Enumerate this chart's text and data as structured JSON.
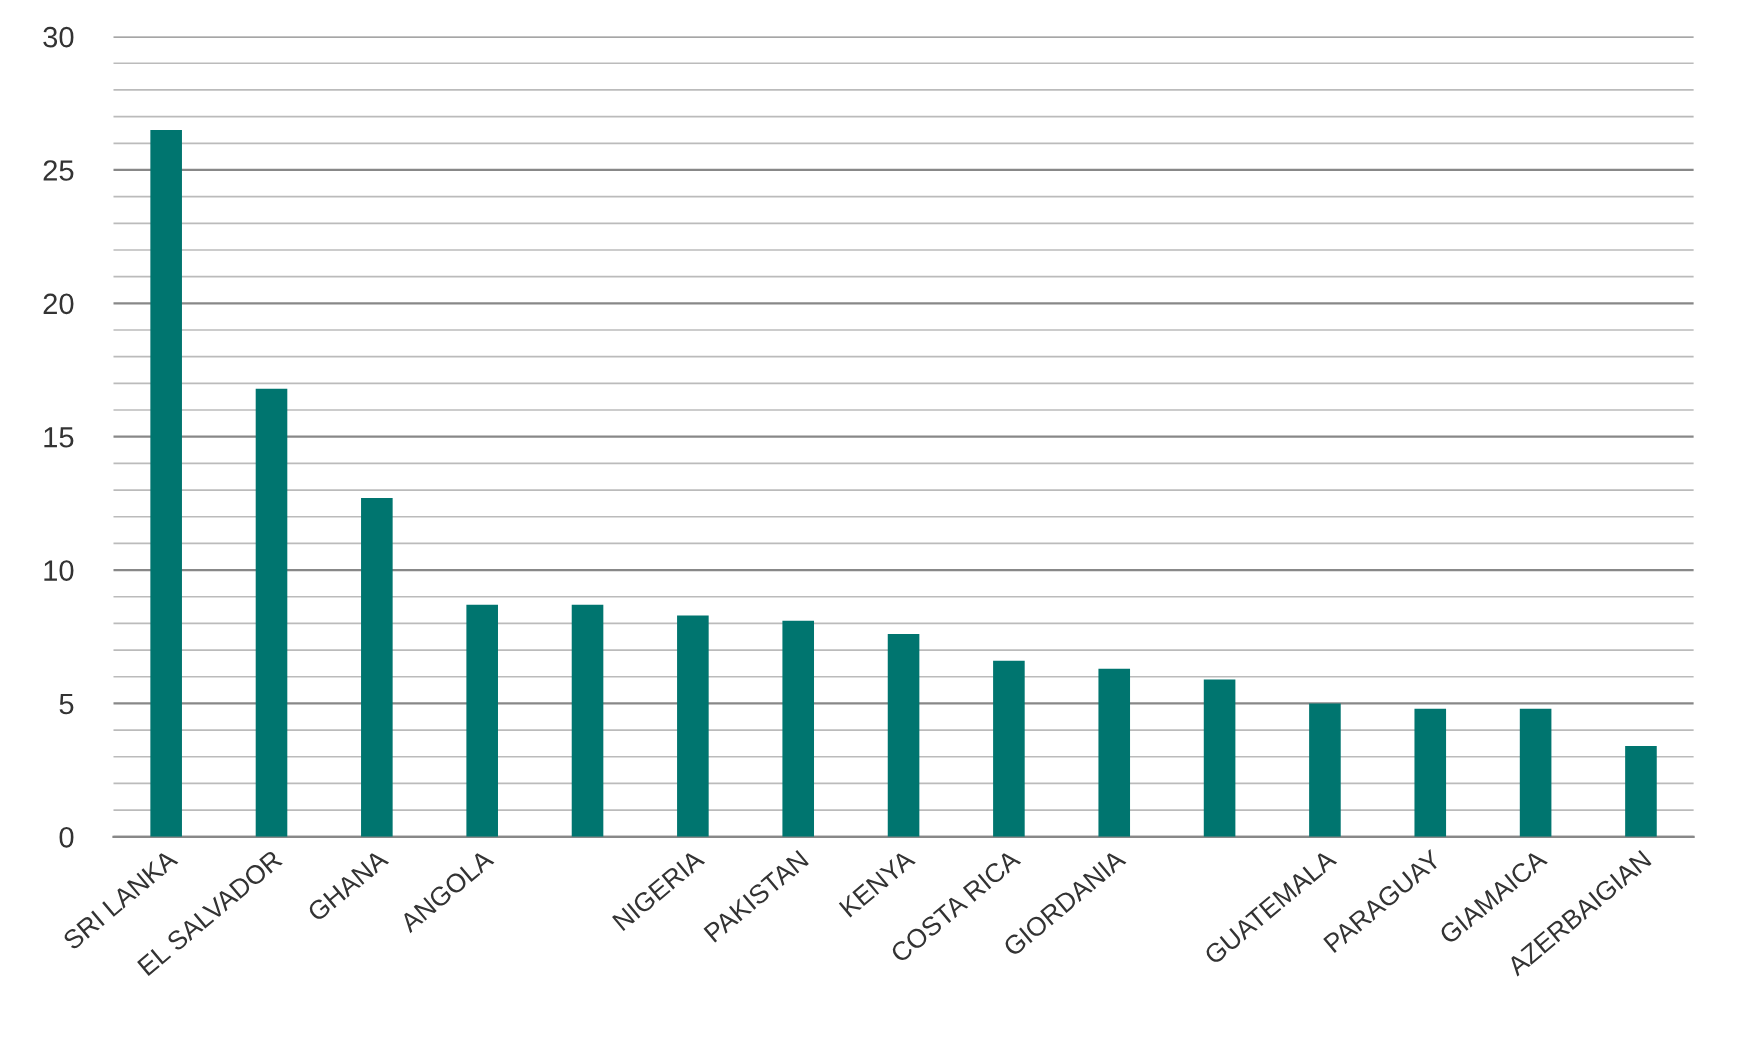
{
  "chart_data": {
    "type": "bar",
    "categories": [
      "SRI LANKA",
      "EL SALVADOR",
      "GHANA",
      "ANGOLA",
      null,
      "NIGERIA",
      "PAKISTAN",
      "KENYA",
      "COSTA RICA",
      "GIORDANIA",
      null,
      "GUATEMALA",
      "PARAGUAY",
      "GIAMAICA",
      "AZERBAIGIAN"
    ],
    "values": [
      26.5,
      16.8,
      12.7,
      8.7,
      8.7,
      8.3,
      8.1,
      7.6,
      6.6,
      6.3,
      5.9,
      5.0,
      4.8,
      4.8,
      3.4
    ],
    "color": "#00756f",
    "ylim": [
      0,
      30
    ],
    "yticks": [
      0,
      {
        "value": 1,
        "label": null
      },
      {
        "value": 2,
        "label": null
      },
      {
        "value": 3,
        "label": null
      },
      {
        "value": 4,
        "label": null
      },
      5,
      {
        "value": 6,
        "label": null
      },
      {
        "value": 7,
        "label": null
      },
      {
        "value": 8,
        "label": null
      },
      {
        "value": 9,
        "label": null
      },
      10,
      {
        "value": 11,
        "label": null
      },
      {
        "value": 12,
        "label": null
      },
      {
        "value": 13,
        "label": null
      },
      {
        "value": 14,
        "label": null
      },
      15,
      {
        "value": 16,
        "label": null
      },
      {
        "value": 17,
        "label": null
      },
      {
        "value": 18,
        "label": null
      },
      {
        "value": 19,
        "label": null
      },
      20,
      {
        "value": 21,
        "label": null
      },
      {
        "value": 22,
        "label": null
      },
      {
        "value": 23,
        "label": null
      },
      {
        "value": 24,
        "label": null
      },
      25,
      {
        "value": 26,
        "label": null
      },
      {
        "value": 27,
        "label": null
      },
      {
        "value": 28,
        "label": null
      },
      {
        "value": 29,
        "label": null
      },
      30
    ],
    "grid": "y"
  }
}
